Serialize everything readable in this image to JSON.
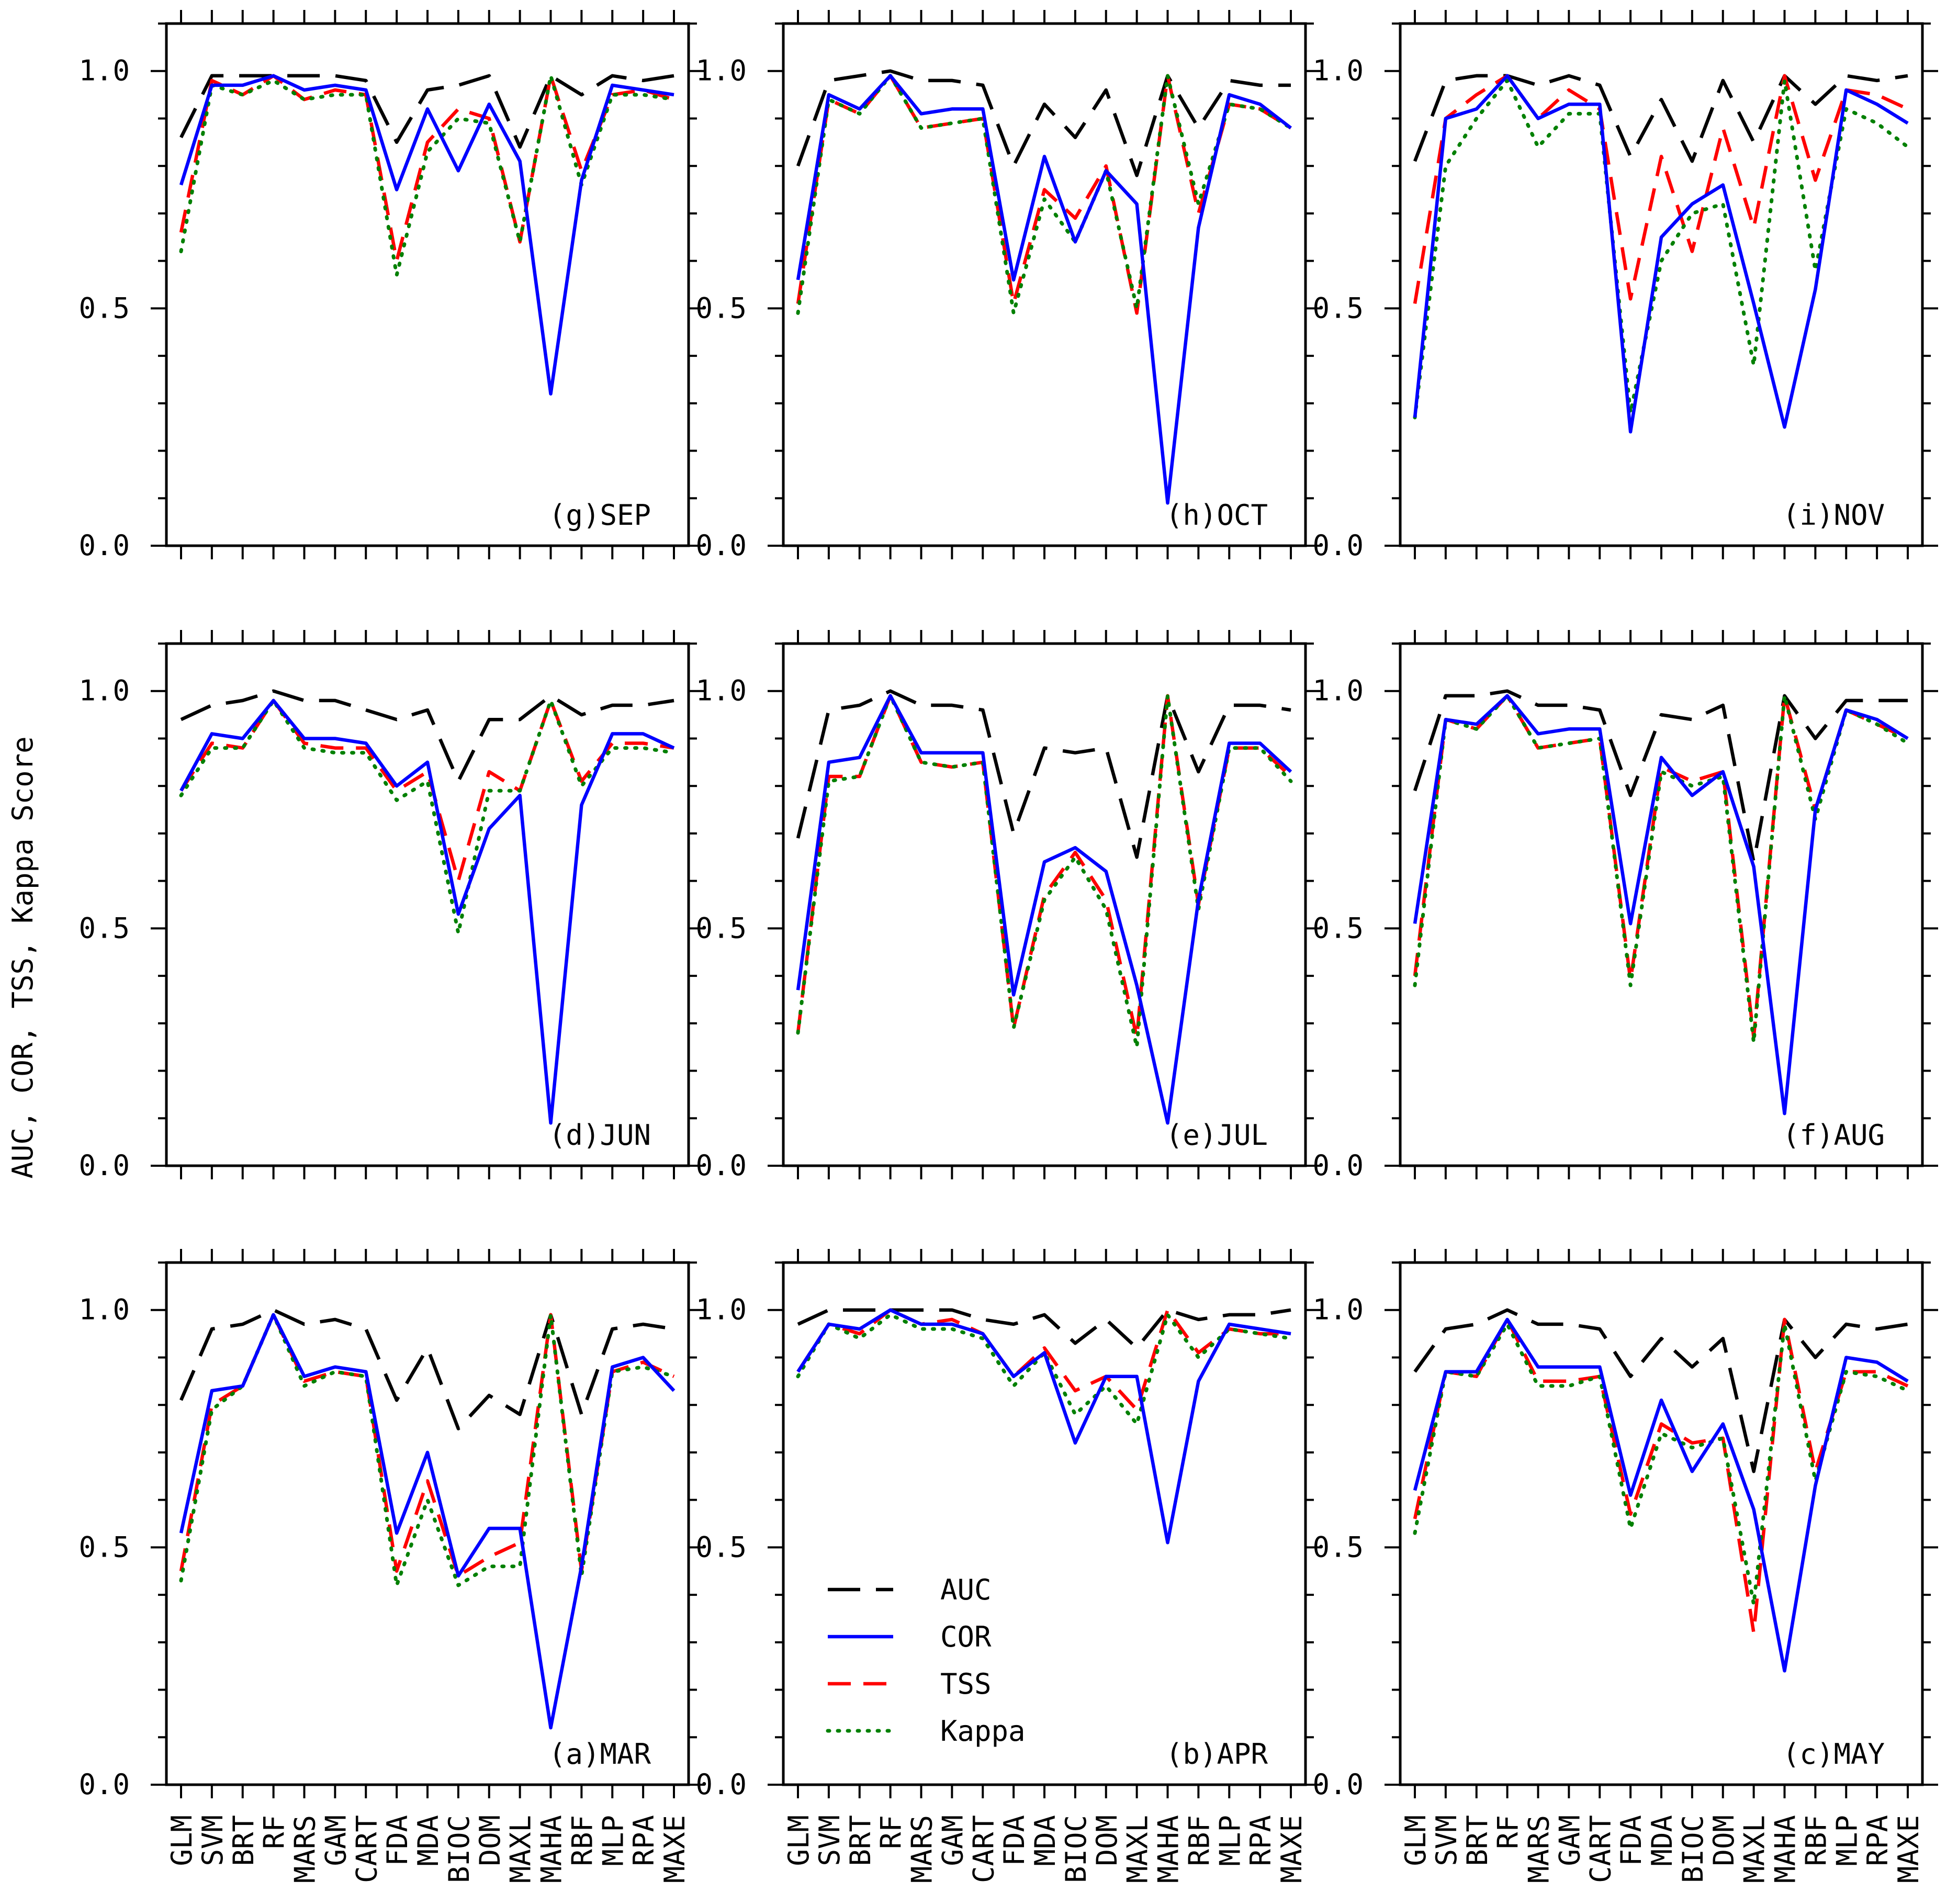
{
  "figure": {
    "ylabel": "AUC, COR, TSS, Kappa Score",
    "ylim": [
      0,
      1.1
    ],
    "yticks": [
      0.0,
      0.5,
      1.0
    ],
    "ytick_labels": [
      "0.0",
      "0.5",
      "1.0"
    ],
    "categories": [
      "GLM",
      "SVM",
      "BRT",
      "RF",
      "MARS",
      "GAM",
      "CART",
      "FDA",
      "MDA",
      "BIOC",
      "DOM",
      "MAXL",
      "MAHA",
      "RBF",
      "MLP",
      "RPA",
      "MAXE"
    ],
    "legend": {
      "location": "inside panel (b) APR, lower-left",
      "entries": [
        {
          "key": "AUC",
          "label": "AUC"
        },
        {
          "key": "COR",
          "label": "COR"
        },
        {
          "key": "TSS",
          "label": "TSS"
        },
        {
          "key": "Kappa",
          "label": "Kappa"
        }
      ]
    },
    "series_styles": {
      "AUC": {
        "color": "#000000",
        "dash": "long-dash"
      },
      "COR": {
        "color": "#0000ff",
        "dash": "solid"
      },
      "TSS": {
        "color": "#ff0000",
        "dash": "dash"
      },
      "Kappa": {
        "color": "#008000",
        "dash": "dot"
      }
    }
  },
  "chart_data": [
    {
      "type": "line",
      "title": "(g)SEP",
      "xlabel": "",
      "ylabel": "AUC, COR, TSS, Kappa Score",
      "ylim": [
        0,
        1.1
      ],
      "categories": [
        "GLM",
        "SVM",
        "BRT",
        "RF",
        "MARS",
        "GAM",
        "CART",
        "FDA",
        "MDA",
        "BIOC",
        "DOM",
        "MAXL",
        "MAHA",
        "RBF",
        "MLP",
        "RPA",
        "MAXE"
      ],
      "series": [
        {
          "name": "AUC",
          "values": [
            0.86,
            0.99,
            0.99,
            0.99,
            0.99,
            0.99,
            0.98,
            0.85,
            0.96,
            0.97,
            0.99,
            0.84,
            0.99,
            0.95,
            0.99,
            0.98,
            0.99
          ]
        },
        {
          "name": "COR",
          "values": [
            0.76,
            0.97,
            0.97,
            0.99,
            0.96,
            0.97,
            0.96,
            0.75,
            0.92,
            0.79,
            0.93,
            0.81,
            0.32,
            0.77,
            0.97,
            0.96,
            0.95
          ]
        },
        {
          "name": "TSS",
          "values": [
            0.66,
            0.98,
            0.95,
            0.99,
            0.94,
            0.96,
            0.95,
            0.6,
            0.85,
            0.92,
            0.9,
            0.64,
            0.99,
            0.79,
            0.95,
            0.96,
            0.94
          ]
        },
        {
          "name": "Kappa",
          "values": [
            0.62,
            0.97,
            0.95,
            0.98,
            0.94,
            0.95,
            0.95,
            0.57,
            0.83,
            0.9,
            0.89,
            0.64,
            0.99,
            0.76,
            0.95,
            0.95,
            0.94
          ]
        }
      ]
    },
    {
      "type": "line",
      "title": "(h)OCT",
      "xlabel": "",
      "ylabel": "",
      "ylim": [
        0,
        1.1
      ],
      "categories": [
        "GLM",
        "SVM",
        "BRT",
        "RF",
        "MARS",
        "GAM",
        "CART",
        "FDA",
        "MDA",
        "BIOC",
        "DOM",
        "MAXL",
        "MAHA",
        "RBF",
        "MLP",
        "RPA",
        "MAXE"
      ],
      "series": [
        {
          "name": "AUC",
          "values": [
            0.8,
            0.98,
            0.99,
            1.0,
            0.98,
            0.98,
            0.97,
            0.8,
            0.93,
            0.86,
            0.96,
            0.78,
            0.99,
            0.88,
            0.98,
            0.97,
            0.97
          ]
        },
        {
          "name": "COR",
          "values": [
            0.56,
            0.95,
            0.92,
            0.99,
            0.91,
            0.92,
            0.92,
            0.56,
            0.82,
            0.64,
            0.79,
            0.72,
            0.09,
            0.67,
            0.95,
            0.93,
            0.88
          ]
        },
        {
          "name": "TSS",
          "values": [
            0.51,
            0.94,
            0.91,
            0.99,
            0.88,
            0.89,
            0.9,
            0.51,
            0.75,
            0.69,
            0.8,
            0.49,
            0.99,
            0.7,
            0.93,
            0.92,
            0.88
          ]
        },
        {
          "name": "Kappa",
          "values": [
            0.49,
            0.94,
            0.91,
            0.99,
            0.88,
            0.89,
            0.9,
            0.49,
            0.73,
            0.64,
            0.79,
            0.5,
            0.99,
            0.72,
            0.93,
            0.92,
            0.88
          ]
        }
      ]
    },
    {
      "type": "line",
      "title": "(i)NOV",
      "xlabel": "",
      "ylabel": "",
      "ylim": [
        0,
        1.1
      ],
      "categories": [
        "GLM",
        "SVM",
        "BRT",
        "RF",
        "MARS",
        "GAM",
        "CART",
        "FDA",
        "MDA",
        "BIOC",
        "DOM",
        "MAXL",
        "MAHA",
        "RBF",
        "MLP",
        "RPA",
        "MAXE"
      ],
      "series": [
        {
          "name": "AUC",
          "values": [
            0.81,
            0.98,
            0.99,
            0.99,
            0.97,
            0.99,
            0.97,
            0.82,
            0.94,
            0.81,
            0.98,
            0.85,
            0.99,
            0.93,
            0.99,
            0.98,
            0.99
          ]
        },
        {
          "name": "COR",
          "values": [
            0.27,
            0.9,
            0.92,
            0.99,
            0.9,
            0.93,
            0.93,
            0.24,
            0.65,
            0.72,
            0.76,
            0.51,
            0.25,
            0.54,
            0.96,
            0.93,
            0.89
          ]
        },
        {
          "name": "TSS",
          "values": [
            0.51,
            0.9,
            0.95,
            0.99,
            0.9,
            0.96,
            0.92,
            0.52,
            0.82,
            0.62,
            0.88,
            0.67,
            0.99,
            0.77,
            0.96,
            0.95,
            0.92
          ]
        },
        {
          "name": "Kappa",
          "values": [
            0.27,
            0.8,
            0.9,
            0.98,
            0.84,
            0.91,
            0.91,
            0.28,
            0.6,
            0.7,
            0.72,
            0.38,
            0.98,
            0.58,
            0.92,
            0.89,
            0.84
          ]
        }
      ]
    },
    {
      "type": "line",
      "title": "(d)JUN",
      "xlabel": "",
      "ylabel": "",
      "ylim": [
        0,
        1.1
      ],
      "categories": [
        "GLM",
        "SVM",
        "BRT",
        "RF",
        "MARS",
        "GAM",
        "CART",
        "FDA",
        "MDA",
        "BIOC",
        "DOM",
        "MAXL",
        "MAHA",
        "RBF",
        "MLP",
        "RPA",
        "MAXE"
      ],
      "series": [
        {
          "name": "AUC",
          "values": [
            0.94,
            0.97,
            0.98,
            1.0,
            0.98,
            0.98,
            0.96,
            0.94,
            0.96,
            0.81,
            0.94,
            0.94,
            0.99,
            0.95,
            0.97,
            0.97,
            0.98
          ]
        },
        {
          "name": "COR",
          "values": [
            0.79,
            0.91,
            0.9,
            0.98,
            0.9,
            0.9,
            0.89,
            0.8,
            0.85,
            0.53,
            0.71,
            0.78,
            0.09,
            0.76,
            0.91,
            0.91,
            0.88
          ]
        },
        {
          "name": "TSS",
          "values": [
            0.79,
            0.89,
            0.88,
            0.98,
            0.89,
            0.88,
            0.88,
            0.79,
            0.83,
            0.6,
            0.83,
            0.79,
            0.98,
            0.81,
            0.89,
            0.89,
            0.88
          ]
        },
        {
          "name": "Kappa",
          "values": [
            0.78,
            0.88,
            0.88,
            0.98,
            0.88,
            0.87,
            0.87,
            0.77,
            0.81,
            0.49,
            0.79,
            0.79,
            0.98,
            0.8,
            0.88,
            0.88,
            0.87
          ]
        }
      ]
    },
    {
      "type": "line",
      "title": "(e)JUL",
      "xlabel": "",
      "ylabel": "",
      "ylim": [
        0,
        1.1
      ],
      "categories": [
        "GLM",
        "SVM",
        "BRT",
        "RF",
        "MARS",
        "GAM",
        "CART",
        "FDA",
        "MDA",
        "BIOC",
        "DOM",
        "MAXL",
        "MAHA",
        "RBF",
        "MLP",
        "RPA",
        "MAXE"
      ],
      "series": [
        {
          "name": "AUC",
          "values": [
            0.69,
            0.96,
            0.97,
            1.0,
            0.97,
            0.97,
            0.96,
            0.7,
            0.88,
            0.87,
            0.88,
            0.65,
            0.99,
            0.83,
            0.97,
            0.97,
            0.96
          ]
        },
        {
          "name": "COR",
          "values": [
            0.37,
            0.85,
            0.86,
            0.99,
            0.87,
            0.87,
            0.87,
            0.36,
            0.64,
            0.67,
            0.62,
            0.38,
            0.09,
            0.56,
            0.89,
            0.89,
            0.83
          ]
        },
        {
          "name": "TSS",
          "values": [
            0.28,
            0.82,
            0.82,
            0.99,
            0.85,
            0.84,
            0.85,
            0.29,
            0.57,
            0.66,
            0.56,
            0.27,
            0.99,
            0.55,
            0.88,
            0.88,
            0.82
          ]
        },
        {
          "name": "Kappa",
          "values": [
            0.28,
            0.81,
            0.82,
            0.99,
            0.85,
            0.84,
            0.85,
            0.29,
            0.56,
            0.65,
            0.54,
            0.25,
            0.99,
            0.54,
            0.88,
            0.88,
            0.81
          ]
        }
      ]
    },
    {
      "type": "line",
      "title": "(f)AUG",
      "xlabel": "",
      "ylabel": "",
      "ylim": [
        0,
        1.1
      ],
      "categories": [
        "GLM",
        "SVM",
        "BRT",
        "RF",
        "MARS",
        "GAM",
        "CART",
        "FDA",
        "MDA",
        "BIOC",
        "DOM",
        "MAXL",
        "MAHA",
        "RBF",
        "MLP",
        "RPA",
        "MAXE"
      ],
      "series": [
        {
          "name": "AUC",
          "values": [
            0.79,
            0.99,
            0.99,
            1.0,
            0.97,
            0.97,
            0.96,
            0.78,
            0.95,
            0.94,
            0.97,
            0.64,
            0.99,
            0.9,
            0.98,
            0.98,
            0.98
          ]
        },
        {
          "name": "COR",
          "values": [
            0.51,
            0.94,
            0.93,
            0.99,
            0.91,
            0.92,
            0.92,
            0.51,
            0.86,
            0.78,
            0.83,
            0.63,
            0.11,
            0.75,
            0.96,
            0.94,
            0.9
          ]
        },
        {
          "name": "TSS",
          "values": [
            0.4,
            0.94,
            0.92,
            0.99,
            0.88,
            0.89,
            0.9,
            0.39,
            0.84,
            0.81,
            0.83,
            0.27,
            0.99,
            0.75,
            0.96,
            0.93,
            0.9
          ]
        },
        {
          "name": "Kappa",
          "values": [
            0.38,
            0.94,
            0.92,
            0.99,
            0.88,
            0.89,
            0.9,
            0.38,
            0.83,
            0.8,
            0.82,
            0.26,
            0.99,
            0.73,
            0.96,
            0.93,
            0.89
          ]
        }
      ]
    },
    {
      "type": "line",
      "title": "(a)MAR",
      "xlabel": "",
      "ylabel": "",
      "ylim": [
        0,
        1.1
      ],
      "categories": [
        "GLM",
        "SVM",
        "BRT",
        "RF",
        "MARS",
        "GAM",
        "CART",
        "FDA",
        "MDA",
        "BIOC",
        "DOM",
        "MAXL",
        "MAHA",
        "RBF",
        "MLP",
        "RPA",
        "MAXE"
      ],
      "series": [
        {
          "name": "AUC",
          "values": [
            0.81,
            0.96,
            0.97,
            1.0,
            0.97,
            0.98,
            0.96,
            0.81,
            0.92,
            0.75,
            0.82,
            0.78,
            0.99,
            0.78,
            0.96,
            0.97,
            0.96
          ]
        },
        {
          "name": "COR",
          "values": [
            0.53,
            0.83,
            0.84,
            0.99,
            0.86,
            0.88,
            0.87,
            0.53,
            0.7,
            0.44,
            0.54,
            0.54,
            0.12,
            0.46,
            0.88,
            0.9,
            0.83
          ]
        },
        {
          "name": "TSS",
          "values": [
            0.45,
            0.8,
            0.84,
            0.99,
            0.85,
            0.87,
            0.86,
            0.45,
            0.64,
            0.44,
            0.48,
            0.51,
            0.99,
            0.45,
            0.87,
            0.89,
            0.86
          ]
        },
        {
          "name": "Kappa",
          "values": [
            0.43,
            0.79,
            0.84,
            0.99,
            0.84,
            0.87,
            0.86,
            0.42,
            0.6,
            0.42,
            0.46,
            0.46,
            0.99,
            0.44,
            0.87,
            0.88,
            0.86
          ]
        }
      ]
    },
    {
      "type": "line",
      "title": "(b)APR",
      "xlabel": "",
      "ylabel": "",
      "ylim": [
        0,
        1.1
      ],
      "categories": [
        "GLM",
        "SVM",
        "BRT",
        "RF",
        "MARS",
        "GAM",
        "CART",
        "FDA",
        "MDA",
        "BIOC",
        "DOM",
        "MAXL",
        "MAHA",
        "RBF",
        "MLP",
        "RPA",
        "MAXE"
      ],
      "series": [
        {
          "name": "AUC",
          "values": [
            0.97,
            1.0,
            1.0,
            1.0,
            1.0,
            1.0,
            0.98,
            0.97,
            0.99,
            0.93,
            0.98,
            0.92,
            1.0,
            0.98,
            0.99,
            0.99,
            1.0
          ]
        },
        {
          "name": "COR",
          "values": [
            0.87,
            0.97,
            0.96,
            1.0,
            0.97,
            0.97,
            0.95,
            0.86,
            0.91,
            0.72,
            0.86,
            0.86,
            0.51,
            0.85,
            0.97,
            0.96,
            0.95
          ]
        },
        {
          "name": "TSS",
          "values": [
            0.87,
            0.97,
            0.95,
            1.0,
            0.97,
            0.98,
            0.95,
            0.86,
            0.92,
            0.83,
            0.86,
            0.79,
            1.0,
            0.91,
            0.96,
            0.95,
            0.95
          ]
        },
        {
          "name": "Kappa",
          "values": [
            0.86,
            0.97,
            0.94,
            0.99,
            0.96,
            0.96,
            0.94,
            0.84,
            0.91,
            0.78,
            0.84,
            0.76,
            0.99,
            0.9,
            0.96,
            0.95,
            0.94
          ]
        }
      ]
    },
    {
      "type": "line",
      "title": "(c)MAY",
      "xlabel": "",
      "ylabel": "",
      "ylim": [
        0,
        1.1
      ],
      "categories": [
        "GLM",
        "SVM",
        "BRT",
        "RF",
        "MARS",
        "GAM",
        "CART",
        "FDA",
        "MDA",
        "BIOC",
        "DOM",
        "MAXL",
        "MAHA",
        "RBF",
        "MLP",
        "RPA",
        "MAXE"
      ],
      "series": [
        {
          "name": "AUC",
          "values": [
            0.87,
            0.96,
            0.97,
            1.0,
            0.97,
            0.97,
            0.96,
            0.86,
            0.94,
            0.88,
            0.94,
            0.66,
            0.98,
            0.9,
            0.97,
            0.96,
            0.97
          ]
        },
        {
          "name": "COR",
          "values": [
            0.62,
            0.87,
            0.87,
            0.98,
            0.88,
            0.88,
            0.88,
            0.61,
            0.81,
            0.66,
            0.76,
            0.58,
            0.24,
            0.63,
            0.9,
            0.89,
            0.85
          ]
        },
        {
          "name": "TSS",
          "values": [
            0.56,
            0.87,
            0.86,
            0.98,
            0.85,
            0.85,
            0.86,
            0.57,
            0.76,
            0.72,
            0.73,
            0.32,
            0.98,
            0.66,
            0.87,
            0.87,
            0.84
          ]
        },
        {
          "name": "Kappa",
          "values": [
            0.53,
            0.87,
            0.86,
            0.97,
            0.84,
            0.84,
            0.86,
            0.54,
            0.74,
            0.71,
            0.73,
            0.38,
            0.97,
            0.64,
            0.87,
            0.86,
            0.83
          ]
        }
      ]
    }
  ]
}
